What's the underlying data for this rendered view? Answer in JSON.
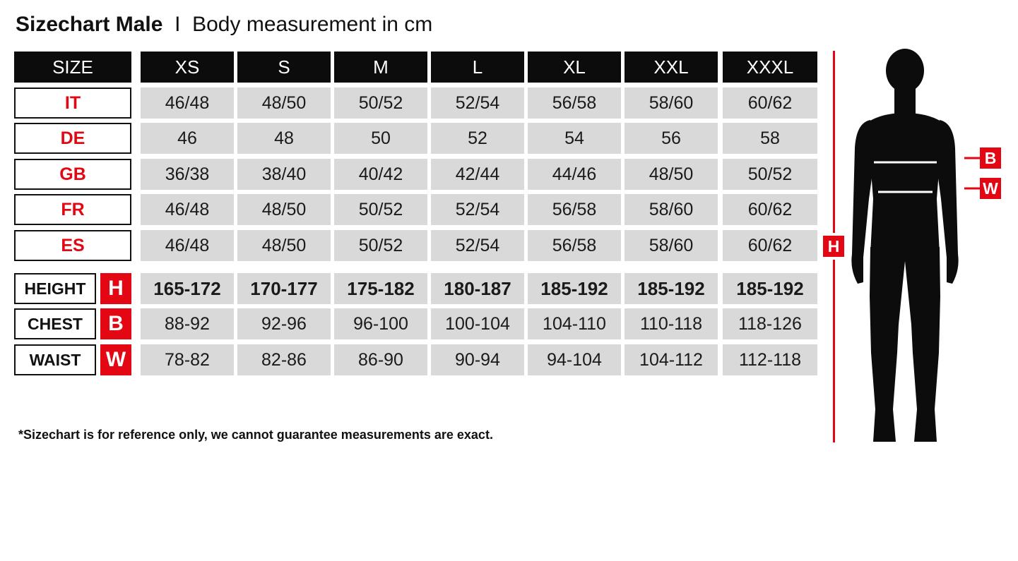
{
  "title": {
    "bold": "Sizechart Male",
    "separator": "I",
    "subtitle": "Body measurement in cm"
  },
  "header": {
    "size_label": "SIZE",
    "sizes": [
      "XS",
      "S",
      "M",
      "L",
      "XL",
      "XXL",
      "XXXL"
    ]
  },
  "conversion_rows": [
    {
      "label": "IT",
      "values": [
        "46/48",
        "48/50",
        "50/52",
        "52/54",
        "56/58",
        "58/60",
        "60/62"
      ]
    },
    {
      "label": "DE",
      "values": [
        "46",
        "48",
        "50",
        "52",
        "54",
        "56",
        "58"
      ]
    },
    {
      "label": "GB",
      "values": [
        "36/38",
        "38/40",
        "40/42",
        "42/44",
        "44/46",
        "48/50",
        "50/52"
      ]
    },
    {
      "label": "FR",
      "values": [
        "46/48",
        "48/50",
        "50/52",
        "52/54",
        "56/58",
        "58/60",
        "60/62"
      ]
    },
    {
      "label": "ES",
      "values": [
        "46/48",
        "48/50",
        "50/52",
        "52/54",
        "56/58",
        "58/60",
        "60/62"
      ]
    }
  ],
  "measurement_rows": [
    {
      "label": "HEIGHT",
      "badge": "H",
      "bold": true,
      "values": [
        "165-172",
        "170-177",
        "175-182",
        "180-187",
        "185-192",
        "185-192",
        "185-192"
      ]
    },
    {
      "label": "CHEST",
      "badge": "B",
      "bold": false,
      "values": [
        "88-92",
        "92-96",
        "96-100",
        "100-104",
        "104-110",
        "110-118",
        "118-126"
      ]
    },
    {
      "label": "WAIST",
      "badge": "W",
      "bold": false,
      "values": [
        "78-82",
        "82-86",
        "86-90",
        "90-94",
        "94-104",
        "104-112",
        "112-118"
      ]
    }
  ],
  "figure": {
    "height_marker": "H",
    "chest_marker": "B",
    "waist_marker": "W"
  },
  "note": "*Sizechart is for reference only, we cannot guarantee measurements are exact.",
  "colors": {
    "accent": "#e30613",
    "header_bg": "#0c0c0c",
    "cell_bg": "#d9d9d9"
  }
}
